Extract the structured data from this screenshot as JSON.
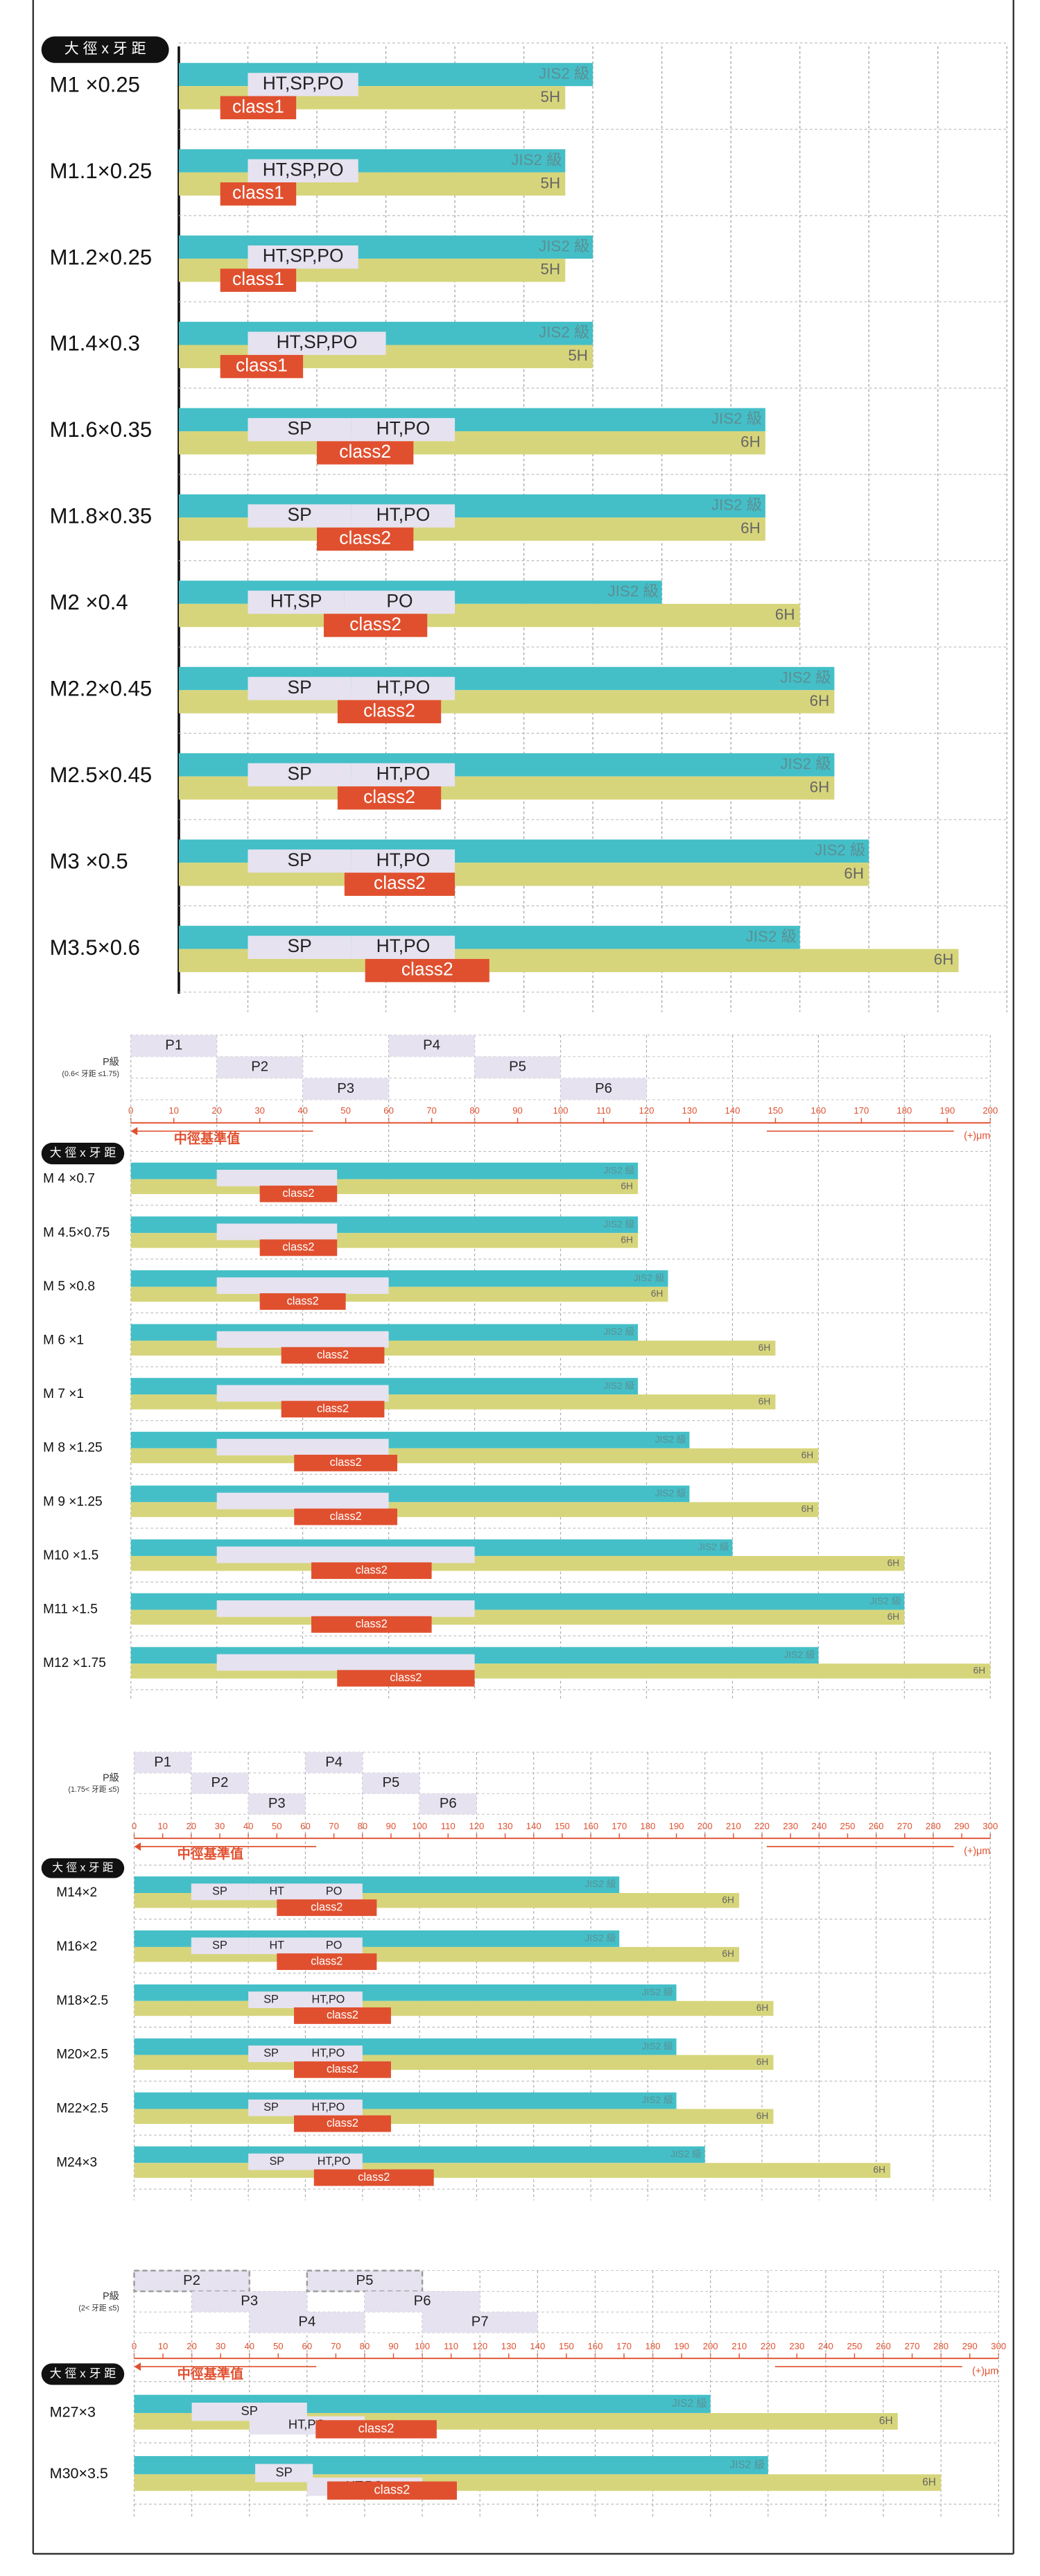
{
  "chart_data": [
    {
      "type": "tolerance-bar",
      "header_label": "大 徑 x 牙 距",
      "xlim": [
        0,
        12
      ],
      "rows": [
        {
          "name": "M1 ×0.25",
          "jis": 6.0,
          "jis_label": "JIS2 級",
          "grade": 5.6,
          "grade_label": "5H",
          "ranges": [
            {
              "label": "HT,SP,PO",
              "from": 1.0,
              "to": 2.6
            }
          ],
          "class_label": "class1",
          "class_range": [
            0.6,
            1.7
          ]
        },
        {
          "name": "M1.1×0.25",
          "jis": 5.6,
          "jis_label": "JIS2 級",
          "grade": 5.6,
          "grade_label": "5H",
          "ranges": [
            {
              "label": "HT,SP,PO",
              "from": 1.0,
              "to": 2.6
            }
          ],
          "class_label": "class1",
          "class_range": [
            0.6,
            1.7
          ]
        },
        {
          "name": "M1.2×0.25",
          "jis": 6.0,
          "jis_label": "JIS2 級",
          "grade": 5.6,
          "grade_label": "5H",
          "ranges": [
            {
              "label": "HT,SP,PO",
              "from": 1.0,
              "to": 2.6
            }
          ],
          "class_label": "class1",
          "class_range": [
            0.6,
            1.7
          ]
        },
        {
          "name": "M1.4×0.3",
          "jis": 6.0,
          "jis_label": "JIS2 級",
          "grade": 6.0,
          "grade_label": "5H",
          "ranges": [
            {
              "label": "HT,SP,PO",
              "from": 1.0,
              "to": 3.0
            }
          ],
          "class_label": "class1",
          "class_range": [
            0.6,
            1.8
          ]
        },
        {
          "name": "M1.6×0.35",
          "jis": 8.5,
          "jis_label": "JIS2 級",
          "grade": 8.5,
          "grade_label": "6H",
          "ranges": [
            {
              "label": "SP",
              "from": 1.0,
              "to": 2.5
            },
            {
              "label": "HT,PO",
              "from": 2.5,
              "to": 4.0
            }
          ],
          "class_label": "class2",
          "class_range": [
            2.0,
            3.4
          ]
        },
        {
          "name": "M1.8×0.35",
          "jis": 8.5,
          "jis_label": "JIS2 級",
          "grade": 8.5,
          "grade_label": "6H",
          "ranges": [
            {
              "label": "SP",
              "from": 1.0,
              "to": 2.5
            },
            {
              "label": "HT,PO",
              "from": 2.5,
              "to": 4.0
            }
          ],
          "class_label": "class2",
          "class_range": [
            2.0,
            3.4
          ]
        },
        {
          "name": "M2 ×0.4",
          "jis": 7.0,
          "jis_label": "JIS2 級",
          "grade": 9.0,
          "grade_label": "6H",
          "ranges": [
            {
              "label": "HT,SP",
              "from": 1.0,
              "to": 2.4
            },
            {
              "label": "PO",
              "from": 2.4,
              "to": 4.0
            }
          ],
          "class_label": "class2",
          "class_range": [
            2.1,
            3.6
          ]
        },
        {
          "name": "M2.2×0.45",
          "jis": 9.5,
          "jis_label": "JIS2 級",
          "grade": 9.5,
          "grade_label": "6H",
          "ranges": [
            {
              "label": "SP",
              "from": 1.0,
              "to": 2.5
            },
            {
              "label": "HT,PO",
              "from": 2.5,
              "to": 4.0
            }
          ],
          "class_label": "class2",
          "class_range": [
            2.3,
            3.8
          ]
        },
        {
          "name": "M2.5×0.45",
          "jis": 9.5,
          "jis_label": "JIS2 級",
          "grade": 9.5,
          "grade_label": "6H",
          "ranges": [
            {
              "label": "SP",
              "from": 1.0,
              "to": 2.5
            },
            {
              "label": "HT,PO",
              "from": 2.5,
              "to": 4.0
            }
          ],
          "class_label": "class2",
          "class_range": [
            2.3,
            3.8
          ]
        },
        {
          "name": "M3 ×0.5",
          "jis": 10.0,
          "jis_label": "JIS2 級",
          "grade": 10.0,
          "grade_label": "6H",
          "ranges": [
            {
              "label": "SP",
              "from": 1.0,
              "to": 2.5
            },
            {
              "label": "HT,PO",
              "from": 2.5,
              "to": 4.0
            }
          ],
          "class_label": "class2",
          "class_range": [
            2.4,
            4.0
          ]
        },
        {
          "name": "M3.5×0.6",
          "jis": 9.0,
          "jis_label": "JIS2 級",
          "grade": 11.3,
          "grade_label": "6H",
          "ranges": [
            {
              "label": "SP",
              "from": 1.0,
              "to": 2.5
            },
            {
              "label": "HT,PO",
              "from": 2.5,
              "to": 4.0
            }
          ],
          "class_label": "class2",
          "class_range": [
            2.7,
            4.5
          ]
        }
      ]
    },
    {
      "type": "tolerance-bar",
      "header_label": "大 徑 x 牙 距",
      "p_label": "P級",
      "p_note": "(0.6< 牙距 ≤1.75)",
      "p_grades": [
        {
          "name": "P1",
          "from": 0,
          "to": 20
        },
        {
          "name": "P2",
          "from": 20,
          "to": 40
        },
        {
          "name": "P3",
          "from": 40,
          "to": 60
        },
        {
          "name": "P4",
          "from": 60,
          "to": 80
        },
        {
          "name": "P5",
          "from": 80,
          "to": 100
        },
        {
          "name": "P6",
          "from": 100,
          "to": 120
        }
      ],
      "xlim": [
        0,
        200
      ],
      "xticks": [
        0,
        10,
        20,
        30,
        40,
        50,
        60,
        70,
        80,
        90,
        100,
        110,
        120,
        130,
        140,
        150,
        160,
        170,
        180,
        190,
        200
      ],
      "axis_label": "中徑基準值",
      "unit_label": "(+)μm",
      "rows": [
        {
          "name": "M 4 ×0.7",
          "jis": 118,
          "jis_label": "JIS2 級",
          "grade": 118,
          "grade_label": "6H",
          "ranges": [
            {
              "label": null,
              "from": 20,
              "to": 48
            }
          ],
          "class_label": "class2",
          "class_range": [
            30,
            48
          ]
        },
        {
          "name": "M 4.5×0.75",
          "jis": 118,
          "jis_label": "JIS2 級",
          "grade": 118,
          "grade_label": "6H",
          "ranges": [
            {
              "label": null,
              "from": 20,
              "to": 48
            }
          ],
          "class_label": "class2",
          "class_range": [
            30,
            48
          ]
        },
        {
          "name": "M 5 ×0.8",
          "jis": 125,
          "jis_label": "JIS2 級",
          "grade": 125,
          "grade_label": "6H",
          "ranges": [
            {
              "label": null,
              "from": 20,
              "to": 60
            }
          ],
          "class_label": "class2",
          "class_range": [
            30,
            50
          ]
        },
        {
          "name": "M 6 ×1",
          "jis": 118,
          "jis_label": "JIS2 級",
          "grade": 150,
          "grade_label": "6H",
          "ranges": [
            {
              "label": null,
              "from": 20,
              "to": 60
            }
          ],
          "class_label": "class2",
          "class_range": [
            35,
            59
          ]
        },
        {
          "name": "M 7 ×1",
          "jis": 118,
          "jis_label": "JIS2 級",
          "grade": 150,
          "grade_label": "6H",
          "ranges": [
            {
              "label": null,
              "from": 20,
              "to": 60
            }
          ],
          "class_label": "class2",
          "class_range": [
            35,
            59
          ]
        },
        {
          "name": "M 8 ×1.25",
          "jis": 130,
          "jis_label": "JIS2 級",
          "grade": 160,
          "grade_label": "6H",
          "ranges": [
            {
              "label": null,
              "from": 20,
              "to": 60
            }
          ],
          "class_label": "class2",
          "class_range": [
            38,
            62
          ]
        },
        {
          "name": "M 9 ×1.25",
          "jis": 130,
          "jis_label": "JIS2 級",
          "grade": 160,
          "grade_label": "6H",
          "ranges": [
            {
              "label": null,
              "from": 20,
              "to": 60
            }
          ],
          "class_label": "class2",
          "class_range": [
            38,
            62
          ]
        },
        {
          "name": "M10 ×1.5",
          "jis": 140,
          "jis_label": "JIS2 級",
          "grade": 180,
          "grade_label": "6H",
          "ranges": [
            {
              "label": null,
              "from": 20,
              "to": 80
            }
          ],
          "class_label": "class2",
          "class_range": [
            42,
            70
          ]
        },
        {
          "name": "M11 ×1.5",
          "jis": 180,
          "jis_label": "JIS2 級",
          "grade": 180,
          "grade_label": "6H",
          "ranges": [
            {
              "label": null,
              "from": 20,
              "to": 80
            }
          ],
          "class_label": "class2",
          "class_range": [
            42,
            70
          ]
        },
        {
          "name": "M12 ×1.75",
          "jis": 160,
          "jis_label": "JIS2 級",
          "grade": 200,
          "grade_label": "6H",
          "ranges": [
            {
              "label": null,
              "from": 20,
              "to": 80
            }
          ],
          "class_label": "class2",
          "class_range": [
            48,
            80
          ]
        }
      ]
    },
    {
      "type": "tolerance-bar",
      "header_label": "大 徑 x 牙 距",
      "p_label": "P級",
      "p_note": "(1.75< 牙距 ≤5)",
      "p_grades": [
        {
          "name": "P1",
          "from": 0,
          "to": 20
        },
        {
          "name": "P2",
          "from": 20,
          "to": 40
        },
        {
          "name": "P3",
          "from": 40,
          "to": 60
        },
        {
          "name": "P4",
          "from": 60,
          "to": 80
        },
        {
          "name": "P5",
          "from": 80,
          "to": 100
        },
        {
          "name": "P6",
          "from": 100,
          "to": 120
        }
      ],
      "xlim": [
        0,
        300
      ],
      "xticks": [
        0,
        10,
        20,
        30,
        40,
        50,
        60,
        70,
        80,
        90,
        100,
        110,
        120,
        130,
        140,
        150,
        160,
        170,
        180,
        190,
        200,
        210,
        220,
        230,
        240,
        250,
        260,
        270,
        280,
        290,
        300
      ],
      "axis_label": "中徑基準值",
      "unit_label": "(+)μm",
      "rows": [
        {
          "name": "M14×2",
          "jis": 170,
          "jis_label": "JIS2 級",
          "grade": 212,
          "grade_label": "6H",
          "ranges": [
            {
              "label": "SP",
              "from": 20,
              "to": 40
            },
            {
              "label": "HT",
              "from": 40,
              "to": 60
            },
            {
              "label": "PO",
              "from": 60,
              "to": 80
            }
          ],
          "class_label": "class2",
          "class_range": [
            50,
            85
          ]
        },
        {
          "name": "M16×2",
          "jis": 170,
          "jis_label": "JIS2 級",
          "grade": 212,
          "grade_label": "6H",
          "ranges": [
            {
              "label": "SP",
              "from": 20,
              "to": 40
            },
            {
              "label": "HT",
              "from": 40,
              "to": 60
            },
            {
              "label": "PO",
              "from": 60,
              "to": 80
            }
          ],
          "class_label": "class2",
          "class_range": [
            50,
            85
          ]
        },
        {
          "name": "M18×2.5",
          "jis": 190,
          "jis_label": "JIS2 級",
          "grade": 224,
          "grade_label": "6H",
          "ranges": [
            {
              "label": "SP",
              "from": 40,
              "to": 56
            },
            {
              "label": "HT,PO",
              "from": 56,
              "to": 80
            }
          ],
          "class_label": "class2",
          "class_range": [
            56,
            90
          ]
        },
        {
          "name": "M20×2.5",
          "jis": 190,
          "jis_label": "JIS2 級",
          "grade": 224,
          "grade_label": "6H",
          "ranges": [
            {
              "label": "SP",
              "from": 40,
              "to": 56
            },
            {
              "label": "HT,PO",
              "from": 56,
              "to": 80
            }
          ],
          "class_label": "class2",
          "class_range": [
            56,
            90
          ]
        },
        {
          "name": "M22×2.5",
          "jis": 190,
          "jis_label": "JIS2 級",
          "grade": 224,
          "grade_label": "6H",
          "ranges": [
            {
              "label": "SP",
              "from": 40,
              "to": 56
            },
            {
              "label": "HT,PO",
              "from": 56,
              "to": 80
            }
          ],
          "class_label": "class2",
          "class_range": [
            56,
            90
          ]
        },
        {
          "name": "M24×3",
          "jis": 200,
          "jis_label": "JIS2 級",
          "grade": 265,
          "grade_label": "6H",
          "ranges": [
            {
              "label": "SP",
              "from": 40,
              "to": 60
            },
            {
              "label": "HT,PO",
              "from": 60,
              "to": 80
            }
          ],
          "class_label": "class2",
          "class_range": [
            63,
            105
          ]
        }
      ]
    },
    {
      "type": "tolerance-bar",
      "header_label": "大 徑 x 牙 距",
      "p_label": "P級",
      "p_note": "(2< 牙距 ≤5)",
      "p_grades": [
        {
          "name": "P2",
          "from": 0,
          "to": 40,
          "style": "dashed"
        },
        {
          "name": "P3",
          "from": 20,
          "to": 60
        },
        {
          "name": "P4",
          "from": 40,
          "to": 80
        },
        {
          "name": "P5",
          "from": 60,
          "to": 100,
          "style": "dashed"
        },
        {
          "name": "P6",
          "from": 80,
          "to": 120
        },
        {
          "name": "P7",
          "from": 100,
          "to": 140
        }
      ],
      "xlim": [
        0,
        300
      ],
      "xticks": [
        0,
        10,
        20,
        30,
        40,
        50,
        60,
        70,
        80,
        90,
        100,
        110,
        120,
        130,
        140,
        150,
        160,
        170,
        180,
        190,
        200,
        210,
        220,
        230,
        240,
        250,
        260,
        270,
        280,
        290,
        300
      ],
      "axis_label": "中徑基準值",
      "unit_label": "(+)μm",
      "rows": [
        {
          "name": "M27×3",
          "jis": 200,
          "jis_label": "JIS2 級",
          "grade": 265,
          "grade_label": "6H",
          "ranges": [
            {
              "label": "SP",
              "from": 20,
              "to": 60
            },
            {
              "label": "HT,PO",
              "from": 40,
              "to": 80
            }
          ],
          "class_label": "class2",
          "class_range": [
            63,
            105
          ]
        },
        {
          "name": "M30×3.5",
          "jis": 220,
          "jis_label": "JIS2 級",
          "grade": 280,
          "grade_label": "6H",
          "ranges": [
            {
              "label": "SP",
              "from": 42,
              "to": 62
            },
            {
              "label": "HT,PO",
              "from": 60,
              "to": 100
            }
          ],
          "class_label": "class2",
          "class_range": [
            67,
            112
          ]
        }
      ]
    }
  ]
}
